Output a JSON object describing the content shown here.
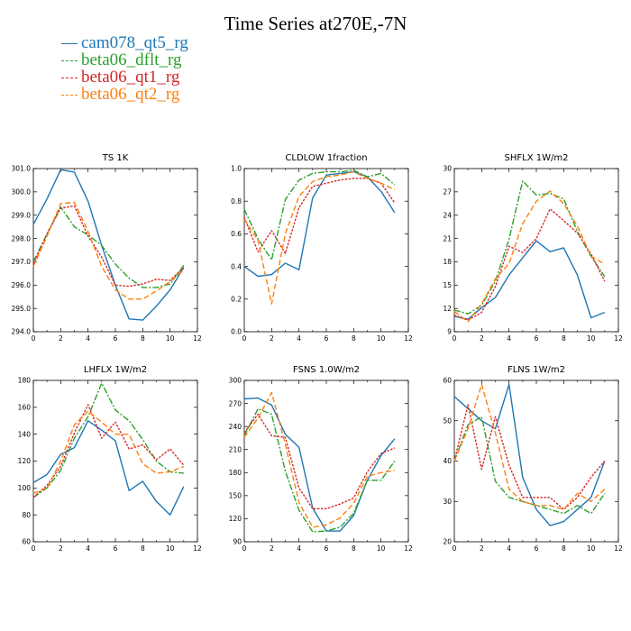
{
  "title": "Time Series at270E,-7N",
  "legend": [
    {
      "label": "cam078_qt5_rg",
      "color": "#1f77b4",
      "dash": ""
    },
    {
      "label": "beta06_dflt_rg",
      "color": "#2ca02c",
      "dash": "7 2 2 2"
    },
    {
      "label": "beta06_qt1_rg",
      "color": "#d62728",
      "dash": "2.5 1.5"
    },
    {
      "label": "beta06_qt2_rg",
      "color": "#ff7f0e",
      "dash": "6 3"
    }
  ],
  "chart_data": [
    {
      "type": "line",
      "title": "TS 1K",
      "x": [
        0,
        1,
        2,
        3,
        4,
        5,
        6,
        7,
        8,
        9,
        10,
        11
      ],
      "xlim": [
        0,
        12
      ],
      "xticks": [
        0,
        2,
        4,
        6,
        8,
        10,
        12
      ],
      "ylim": [
        294.0,
        301.0
      ],
      "yticks": [
        "294.0",
        "295.0",
        "296.0",
        "297.0",
        "298.0",
        "299.0",
        "300.0",
        "301.0"
      ],
      "series": [
        {
          "name": "cam078_qt5_rg",
          "values": [
            298.6,
            299.7,
            300.95,
            300.85,
            299.6,
            297.7,
            296.0,
            294.55,
            294.5,
            295.1,
            295.8,
            296.75
          ]
        },
        {
          "name": "beta06_dflt_rg",
          "values": [
            297.0,
            298.2,
            299.35,
            298.5,
            298.15,
            297.7,
            296.9,
            296.3,
            295.9,
            295.9,
            296.05,
            296.85
          ]
        },
        {
          "name": "beta06_qt1_rg",
          "values": [
            296.9,
            298.2,
            299.3,
            299.4,
            298.1,
            297.2,
            296.0,
            295.95,
            296.05,
            296.25,
            296.2,
            296.75
          ]
        },
        {
          "name": "beta06_qt2_rg",
          "values": [
            296.8,
            298.1,
            299.5,
            299.55,
            298.3,
            296.8,
            295.8,
            295.4,
            295.4,
            295.75,
            296.15,
            296.65
          ]
        }
      ]
    },
    {
      "type": "line",
      "title": "CLDLOW 1fraction",
      "x": [
        0,
        1,
        2,
        3,
        4,
        5,
        6,
        7,
        8,
        9,
        10,
        11
      ],
      "xlim": [
        0,
        12
      ],
      "xticks": [
        0,
        2,
        4,
        6,
        8,
        10,
        12
      ],
      "ylim": [
        0.0,
        1.0
      ],
      "yticks": [
        "0.0",
        "0.2",
        "0.4",
        "0.6",
        "0.8",
        "1.0"
      ],
      "series": [
        {
          "name": "cam078_qt5_rg",
          "values": [
            0.4,
            0.34,
            0.35,
            0.42,
            0.38,
            0.82,
            0.96,
            0.97,
            0.98,
            0.95,
            0.86,
            0.73
          ]
        },
        {
          "name": "beta06_dflt_rg",
          "values": [
            0.75,
            0.57,
            0.44,
            0.81,
            0.93,
            0.97,
            0.98,
            0.98,
            0.99,
            0.95,
            0.97,
            0.9
          ]
        },
        {
          "name": "beta06_qt1_rg",
          "values": [
            0.7,
            0.49,
            0.62,
            0.48,
            0.76,
            0.89,
            0.91,
            0.93,
            0.94,
            0.94,
            0.91,
            0.79
          ]
        },
        {
          "name": "beta06_qt2_rg",
          "values": [
            0.69,
            0.56,
            0.17,
            0.6,
            0.83,
            0.92,
            0.95,
            0.96,
            0.98,
            0.94,
            0.91,
            0.87
          ]
        }
      ]
    },
    {
      "type": "line",
      "title": "SHFLX 1W/m2",
      "x": [
        0,
        1,
        2,
        3,
        4,
        5,
        6,
        7,
        8,
        9,
        10,
        11
      ],
      "xlim": [
        0,
        12
      ],
      "xticks": [
        0,
        2,
        4,
        6,
        8,
        10,
        12
      ],
      "ylim": [
        9,
        30
      ],
      "yticks": [
        "9",
        "12",
        "15",
        "18",
        "21",
        "24",
        "27",
        "30"
      ],
      "series": [
        {
          "name": "cam078_qt5_rg",
          "values": [
            11.0,
            10.6,
            12.1,
            13.4,
            16.3,
            18.5,
            20.7,
            19.3,
            19.8,
            16.3,
            10.8,
            11.5
          ]
        },
        {
          "name": "beta06_dflt_rg",
          "values": [
            11.8,
            11.3,
            12.4,
            15.5,
            20.9,
            28.4,
            26.6,
            26.8,
            26.1,
            21.9,
            18.7,
            16.1
          ]
        },
        {
          "name": "beta06_qt1_rg",
          "values": [
            11.1,
            10.5,
            11.5,
            14.8,
            20.0,
            19.2,
            21.0,
            24.8,
            23.3,
            21.7,
            19.0,
            15.5
          ]
        },
        {
          "name": "beta06_qt2_rg",
          "values": [
            11.6,
            10.3,
            12.6,
            15.8,
            17.8,
            22.9,
            25.8,
            27.1,
            25.5,
            22.6,
            18.7,
            17.7
          ]
        }
      ]
    },
    {
      "type": "line",
      "title": "LHFLX 1W/m2",
      "x": [
        0,
        1,
        2,
        3,
        4,
        5,
        6,
        7,
        8,
        9,
        10,
        11
      ],
      "xlim": [
        0,
        12
      ],
      "xticks": [
        0,
        2,
        4,
        6,
        8,
        10,
        12
      ],
      "ylim": [
        60,
        180
      ],
      "yticks": [
        "60",
        "80",
        "100",
        "120",
        "140",
        "160",
        "180"
      ],
      "series": [
        {
          "name": "cam078_qt5_rg",
          "values": [
            104,
            110,
            125,
            130,
            150,
            143,
            135,
            98,
            105,
            90,
            80,
            101
          ]
        },
        {
          "name": "beta06_dflt_rg",
          "values": [
            93,
            100,
            113,
            137,
            153,
            178,
            158,
            150,
            136,
            120,
            112,
            111
          ]
        },
        {
          "name": "beta06_qt1_rg",
          "values": [
            93,
            102,
            116,
            141,
            162,
            137,
            149,
            129,
            132,
            121,
            129,
            117
          ]
        },
        {
          "name": "beta06_qt2_rg",
          "values": [
            96,
            100,
            120,
            147,
            157,
            149,
            140,
            140,
            118,
            111,
            112,
            116
          ]
        }
      ]
    },
    {
      "type": "line",
      "title": "FSNS 1.0W/m2",
      "x": [
        0,
        1,
        2,
        3,
        4,
        5,
        6,
        7,
        8,
        9,
        10,
        11
      ],
      "xlim": [
        0,
        12
      ],
      "xticks": [
        0,
        2,
        4,
        6,
        8,
        10,
        12
      ],
      "ylim": [
        90,
        300
      ],
      "yticks": [
        "90",
        "120",
        "150",
        "180",
        "210",
        "240",
        "270",
        "300"
      ],
      "series": [
        {
          "name": "cam078_qt5_rg",
          "values": [
            276,
            277,
            268,
            230,
            213,
            134,
            104,
            104,
            124,
            170,
            202,
            224
          ]
        },
        {
          "name": "beta06_dflt_rg",
          "values": [
            228,
            263,
            256,
            182,
            131,
            103,
            104,
            109,
            127,
            170,
            170,
            195
          ]
        },
        {
          "name": "beta06_qt1_rg",
          "values": [
            232,
            256,
            228,
            226,
            160,
            133,
            133,
            139,
            147,
            181,
            205,
            212
          ]
        },
        {
          "name": "beta06_qt2_rg",
          "values": [
            226,
            251,
            284,
            217,
            141,
            109,
            112,
            121,
            140,
            175,
            180,
            183
          ]
        }
      ]
    },
    {
      "type": "line",
      "title": "FLNS 1W/m2",
      "x": [
        0,
        1,
        2,
        3,
        4,
        5,
        6,
        7,
        8,
        9,
        10,
        11
      ],
      "xlim": [
        0,
        12
      ],
      "xticks": [
        0,
        2,
        4,
        6,
        8,
        10,
        12
      ],
      "ylim": [
        20,
        60
      ],
      "yticks": [
        "20",
        "30",
        "40",
        "50",
        "60"
      ],
      "series": [
        {
          "name": "cam078_qt5_rg",
          "values": [
            56,
            53,
            50,
            48,
            59,
            36,
            28,
            24,
            25,
            28,
            31,
            40
          ]
        },
        {
          "name": "beta06_dflt_rg",
          "values": [
            40,
            49,
            51,
            35,
            31,
            30,
            29,
            28,
            27,
            29,
            27,
            32
          ]
        },
        {
          "name": "beta06_qt1_rg",
          "values": [
            40,
            54,
            38,
            51,
            39,
            31,
            31,
            31,
            28,
            31,
            36,
            40
          ]
        },
        {
          "name": "beta06_qt2_rg",
          "values": [
            40,
            48,
            59,
            47,
            33,
            30,
            29,
            29,
            28,
            32,
            30,
            33
          ]
        }
      ]
    }
  ]
}
